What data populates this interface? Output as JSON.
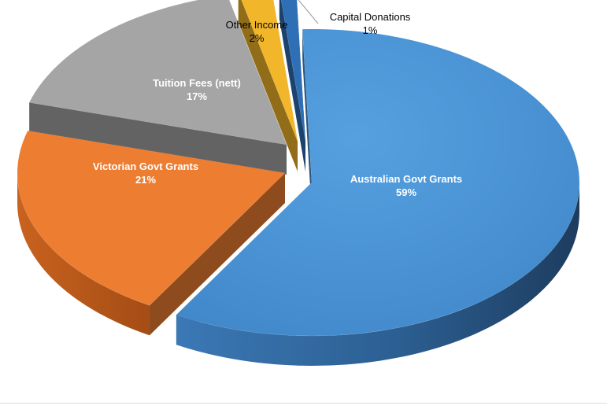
{
  "chart_data": {
    "type": "pie",
    "style": "3d-exploded",
    "slices": [
      {
        "label": "Australian Govt Grants",
        "percent_label": "59%",
        "value": 59,
        "color": "#4a90d0",
        "label_placement": "inside",
        "label_color": "#ffffff"
      },
      {
        "label": "Victorian Govt Grants",
        "percent_label": "21%",
        "value": 21,
        "color": "#ed7d31",
        "label_placement": "inside",
        "label_color": "#ffffff"
      },
      {
        "label": "Tuition Fees (nett)",
        "percent_label": "17%",
        "value": 17,
        "color": "#a5a5a5",
        "label_placement": "inside",
        "label_color": "#ffffff"
      },
      {
        "label": "Other Income",
        "percent_label": "2%",
        "value": 2,
        "color": "#f2b62a",
        "label_placement": "outside",
        "label_color": "#000000"
      },
      {
        "label": "Capital Donations",
        "percent_label": "1%",
        "value": 1,
        "color": "#2f6fb5",
        "label_placement": "outside",
        "label_color": "#000000"
      }
    ],
    "legend": "none",
    "title": ""
  }
}
